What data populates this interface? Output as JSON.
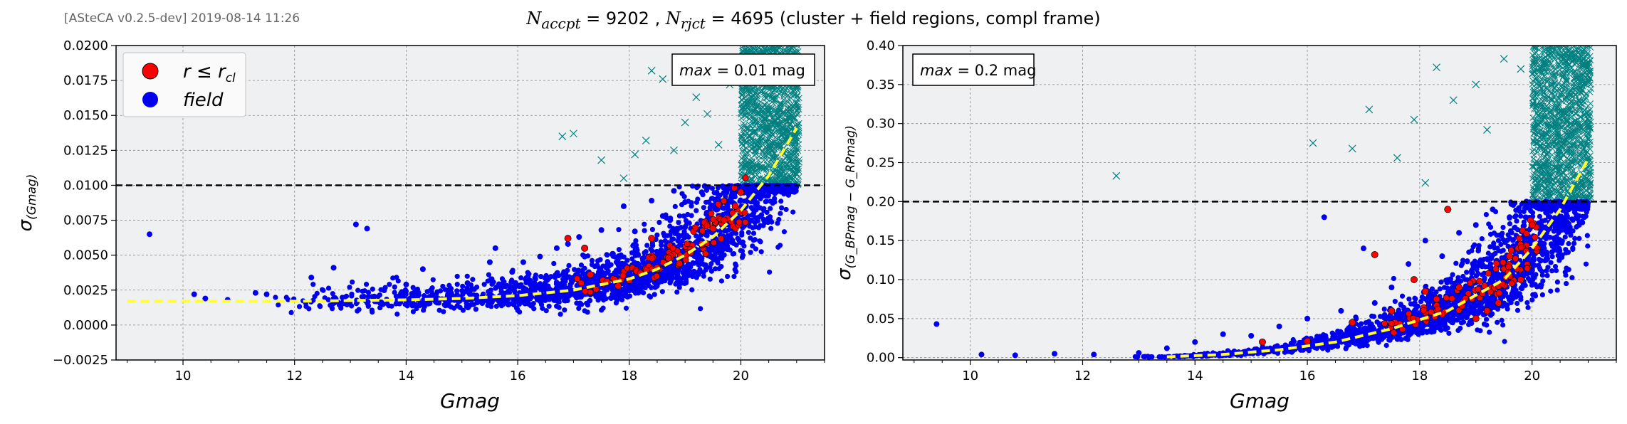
{
  "header": {
    "version": "[ASteCA v0.2.5-dev] 2019-08-14 11:26",
    "title_parts": [
      "N",
      "accpt",
      " = 9202 , ",
      "N",
      "rjct",
      " = 4695 (cluster + field regions, compl frame)"
    ]
  },
  "colors": {
    "cluster": "#ff0000",
    "field": "#0000ee",
    "rejected": "#008080",
    "curve": "#ffff33",
    "threshold": "#000000",
    "background": "#eff0f2"
  },
  "chart_data": [
    {
      "type": "scatter",
      "xlabel": "Gmag",
      "ylabel_symbol": "σ",
      "ylabel_sub": "(Gmag)",
      "xlim": [
        8.8,
        21.5
      ],
      "ylim": [
        -0.0025,
        0.02
      ],
      "xticks": [
        10,
        12,
        14,
        16,
        18,
        20
      ],
      "yticks": [
        -0.0025,
        0.0,
        0.0025,
        0.005,
        0.0075,
        0.01,
        0.0125,
        0.015,
        0.0175,
        0.02
      ],
      "ytick_labels": [
        "−0.0025",
        "0.0000",
        "0.0025",
        "0.0050",
        "0.0075",
        "0.0100",
        "0.0125",
        "0.0150",
        "0.0175",
        "0.0200"
      ],
      "grid": true,
      "threshold": 0.01,
      "annotation": {
        "prefix": "max",
        "text": " = 0.01 mag",
        "position": "top-right"
      },
      "legend": {
        "position": "top-left",
        "entries": [
          {
            "label_main": "r ≤ r",
            "label_sub": "cl",
            "color": "#ff0000"
          },
          {
            "label_main": "field",
            "label_sub": "",
            "color": "#0000ee"
          }
        ]
      },
      "series": [
        {
          "name": "field",
          "points": [
            [
              9.4,
              0.0065
            ],
            [
              10.2,
              0.0022
            ],
            [
              10.4,
              0.0019
            ],
            [
              10.8,
              0.0018
            ],
            [
              11.3,
              0.0023
            ],
            [
              11.5,
              0.0022
            ],
            [
              12.3,
              0.0034
            ],
            [
              12.7,
              0.0041
            ],
            [
              13.1,
              0.0072
            ],
            [
              13.3,
              0.0069
            ],
            [
              13.6,
              0.0025
            ],
            [
              14.0,
              0.0029
            ],
            [
              14.3,
              0.004
            ],
            [
              14.8,
              0.0026
            ],
            [
              15.1,
              0.003
            ],
            [
              15.5,
              0.0045
            ],
            [
              15.6,
              0.0055
            ],
            [
              15.9,
              0.0038
            ],
            [
              16.1,
              0.0045
            ],
            [
              16.4,
              0.0049
            ],
            [
              16.7,
              0.0055
            ],
            [
              16.9,
              0.0058
            ],
            [
              17.1,
              0.0063
            ],
            [
              17.2,
              0.0049
            ],
            [
              17.5,
              0.0068
            ],
            [
              17.7,
              0.0051
            ],
            [
              17.9,
              0.0085
            ],
            [
              18.1,
              0.0067
            ],
            [
              18.4,
              0.0089
            ],
            [
              18.6,
              0.0078
            ],
            [
              18.8,
              0.0096
            ],
            [
              19.0,
              0.0088
            ],
            [
              19.3,
              0.0095
            ],
            [
              19.6,
              0.0092
            ],
            [
              19.8,
              0.0099
            ]
          ]
        },
        {
          "name": "r ≤ r_cl",
          "points": [
            [
              16.9,
              0.0062
            ],
            [
              17.2,
              0.0055
            ],
            [
              17.3,
              0.0036
            ],
            [
              17.6,
              0.0031
            ],
            [
              17.8,
              0.0028
            ],
            [
              18.0,
              0.0032
            ],
            [
              18.2,
              0.0037
            ],
            [
              18.4,
              0.0062
            ],
            [
              18.5,
              0.0041
            ],
            [
              18.7,
              0.0048
            ],
            [
              18.9,
              0.0044
            ],
            [
              19.1,
              0.0052
            ],
            [
              19.3,
              0.0058
            ],
            [
              19.5,
              0.0069
            ],
            [
              19.7,
              0.0075
            ],
            [
              19.9,
              0.0085
            ],
            [
              20.0,
              0.0095
            ]
          ]
        },
        {
          "name": "rejected",
          "points": [
            [
              16.8,
              0.0135
            ],
            [
              17.0,
              0.0137
            ],
            [
              17.5,
              0.0118
            ],
            [
              17.9,
              0.0105
            ],
            [
              18.1,
              0.0122
            ],
            [
              18.3,
              0.0132
            ],
            [
              18.4,
              0.0182
            ],
            [
              18.6,
              0.0176
            ],
            [
              18.8,
              0.0125
            ],
            [
              19.0,
              0.0145
            ],
            [
              19.2,
              0.0163
            ],
            [
              19.4,
              0.0151
            ],
            [
              19.6,
              0.0129
            ],
            [
              19.8,
              0.0172
            ],
            [
              20.0,
              0.0189
            ],
            [
              20.2,
              0.0168
            ],
            [
              20.4,
              0.0196
            ],
            [
              20.7,
              0.0185
            ],
            [
              20.9,
              0.0199
            ]
          ]
        }
      ],
      "curve": [
        [
          9.0,
          0.0017
        ],
        [
          12.0,
          0.0017
        ],
        [
          14.0,
          0.0018
        ],
        [
          15.0,
          0.0019
        ],
        [
          16.0,
          0.0021
        ],
        [
          17.0,
          0.0025
        ],
        [
          18.0,
          0.0033
        ],
        [
          18.5,
          0.004
        ],
        [
          19.0,
          0.005
        ],
        [
          19.5,
          0.0063
        ],
        [
          20.0,
          0.0082
        ],
        [
          20.5,
          0.0107
        ],
        [
          21.0,
          0.0141
        ]
      ]
    },
    {
      "type": "scatter",
      "xlabel": "Gmag",
      "ylabel_symbol": "σ",
      "ylabel_sub": "(G_BPmag − G_RPmag)",
      "xlim": [
        8.8,
        21.5
      ],
      "ylim": [
        -0.003,
        0.4
      ],
      "xticks": [
        10,
        12,
        14,
        16,
        18,
        20
      ],
      "yticks": [
        0.0,
        0.05,
        0.1,
        0.15,
        0.2,
        0.25,
        0.3,
        0.35,
        0.4
      ],
      "ytick_labels": [
        "0.00",
        "0.05",
        "0.10",
        "0.15",
        "0.20",
        "0.25",
        "0.30",
        "0.35",
        "0.40"
      ],
      "grid": true,
      "threshold": 0.2,
      "annotation": {
        "prefix": "max",
        "text": " = 0.2 mag",
        "position": "top-left"
      },
      "series": [
        {
          "name": "field",
          "points": [
            [
              9.4,
              0.043
            ],
            [
              10.2,
              0.004
            ],
            [
              10.8,
              0.003
            ],
            [
              11.5,
              0.005
            ],
            [
              12.2,
              0.004
            ],
            [
              13.0,
              0.006
            ],
            [
              13.5,
              0.012
            ],
            [
              14.0,
              0.02
            ],
            [
              14.5,
              0.03
            ],
            [
              15.0,
              0.028
            ],
            [
              15.5,
              0.04
            ],
            [
              16.0,
              0.05
            ],
            [
              16.3,
              0.18
            ],
            [
              16.6,
              0.06
            ],
            [
              17.0,
              0.14
            ],
            [
              17.2,
              0.07
            ],
            [
              17.5,
              0.09
            ],
            [
              17.8,
              0.12
            ],
            [
              18.1,
              0.15
            ],
            [
              18.4,
              0.13
            ],
            [
              18.7,
              0.16
            ],
            [
              19.0,
              0.17
            ],
            [
              19.3,
              0.19
            ],
            [
              19.6,
              0.18
            ],
            [
              19.9,
              0.2
            ]
          ]
        },
        {
          "name": "r ≤ r_cl",
          "points": [
            [
              15.2,
              0.02
            ],
            [
              16.0,
              0.021
            ],
            [
              16.8,
              0.045
            ],
            [
              17.2,
              0.132
            ],
            [
              17.5,
              0.06
            ],
            [
              17.9,
              0.1
            ],
            [
              18.1,
              0.085
            ],
            [
              18.3,
              0.075
            ],
            [
              18.5,
              0.19
            ],
            [
              18.7,
              0.09
            ],
            [
              19.0,
              0.05
            ],
            [
              19.2,
              0.06
            ],
            [
              19.4,
              0.07
            ],
            [
              19.6,
              0.13
            ],
            [
              19.8,
              0.1
            ],
            [
              20.0,
              0.17
            ]
          ]
        },
        {
          "name": "rejected",
          "points": [
            [
              12.6,
              0.233
            ],
            [
              16.1,
              0.275
            ],
            [
              16.8,
              0.268
            ],
            [
              17.1,
              0.318
            ],
            [
              17.6,
              0.256
            ],
            [
              17.9,
              0.305
            ],
            [
              18.1,
              0.224
            ],
            [
              18.3,
              0.372
            ],
            [
              18.6,
              0.33
            ],
            [
              19.0,
              0.35
            ],
            [
              19.2,
              0.292
            ],
            [
              19.5,
              0.383
            ],
            [
              19.8,
              0.37
            ],
            [
              20.1,
              0.25
            ],
            [
              20.4,
              0.31
            ],
            [
              20.6,
              0.398
            ],
            [
              20.8,
              0.36
            ],
            [
              21.0,
              0.28
            ]
          ]
        }
      ],
      "curve": [
        [
          13.5,
          0.001
        ],
        [
          14.5,
          0.004
        ],
        [
          15.5,
          0.01
        ],
        [
          16.5,
          0.02
        ],
        [
          17.5,
          0.037
        ],
        [
          18.5,
          0.06
        ],
        [
          19.5,
          0.1
        ],
        [
          20.0,
          0.14
        ],
        [
          20.5,
          0.19
        ],
        [
          21.0,
          0.255
        ]
      ]
    }
  ]
}
